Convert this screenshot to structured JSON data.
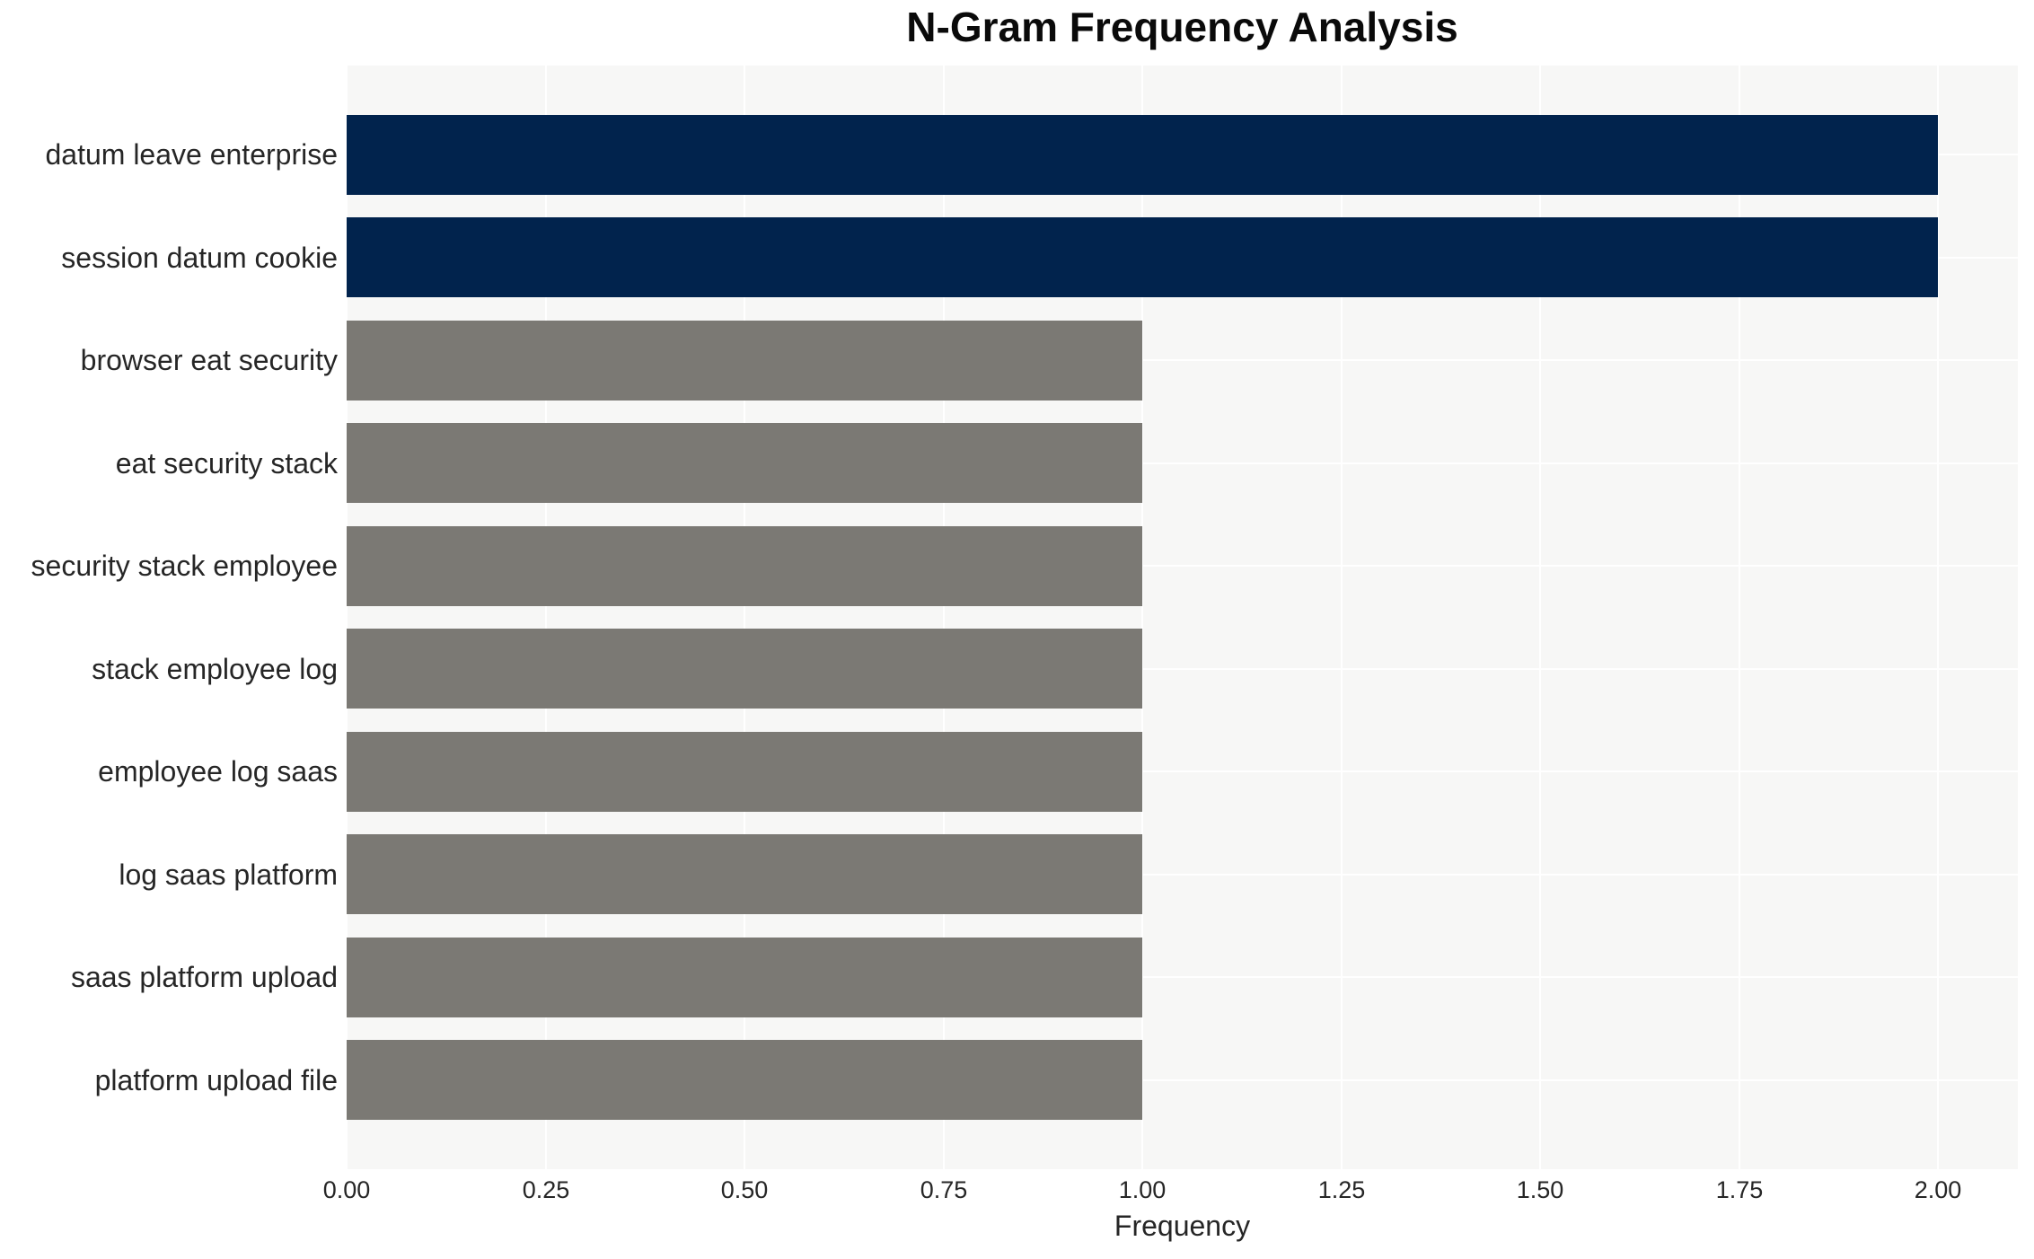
{
  "chart_data": {
    "type": "bar",
    "orientation": "horizontal",
    "title": "N-Gram Frequency Analysis",
    "xlabel": "Frequency",
    "ylabel": "",
    "categories": [
      "datum leave enterprise",
      "session datum cookie",
      "browser eat security",
      "eat security stack",
      "security stack employee",
      "stack employee log",
      "employee log saas",
      "log saas platform",
      "saas platform upload",
      "platform upload file"
    ],
    "values": [
      2,
      2,
      1,
      1,
      1,
      1,
      1,
      1,
      1,
      1
    ],
    "bar_colors": [
      "#01234D",
      "#01234D",
      "#7B7974",
      "#7B7974",
      "#7B7974",
      "#7B7974",
      "#7B7974",
      "#7B7974",
      "#7B7974",
      "#7B7974"
    ],
    "xlim": [
      0,
      2.1
    ],
    "xticks": [
      0,
      0.25,
      0.5,
      0.75,
      1.0,
      1.25,
      1.5,
      1.75,
      2.0
    ],
    "xtick_labels": [
      "0.00",
      "0.25",
      "0.50",
      "0.75",
      "1.00",
      "1.25",
      "1.50",
      "1.75",
      "2.00"
    ],
    "grid": true,
    "legend_position": "none",
    "colors": {
      "highlight": "#01234D",
      "base": "#7B7974",
      "plot_background": "#F7F7F6",
      "gridline": "#FFFFFF",
      "tick_text": "#262626",
      "title_text": "#0A0A0A"
    }
  }
}
